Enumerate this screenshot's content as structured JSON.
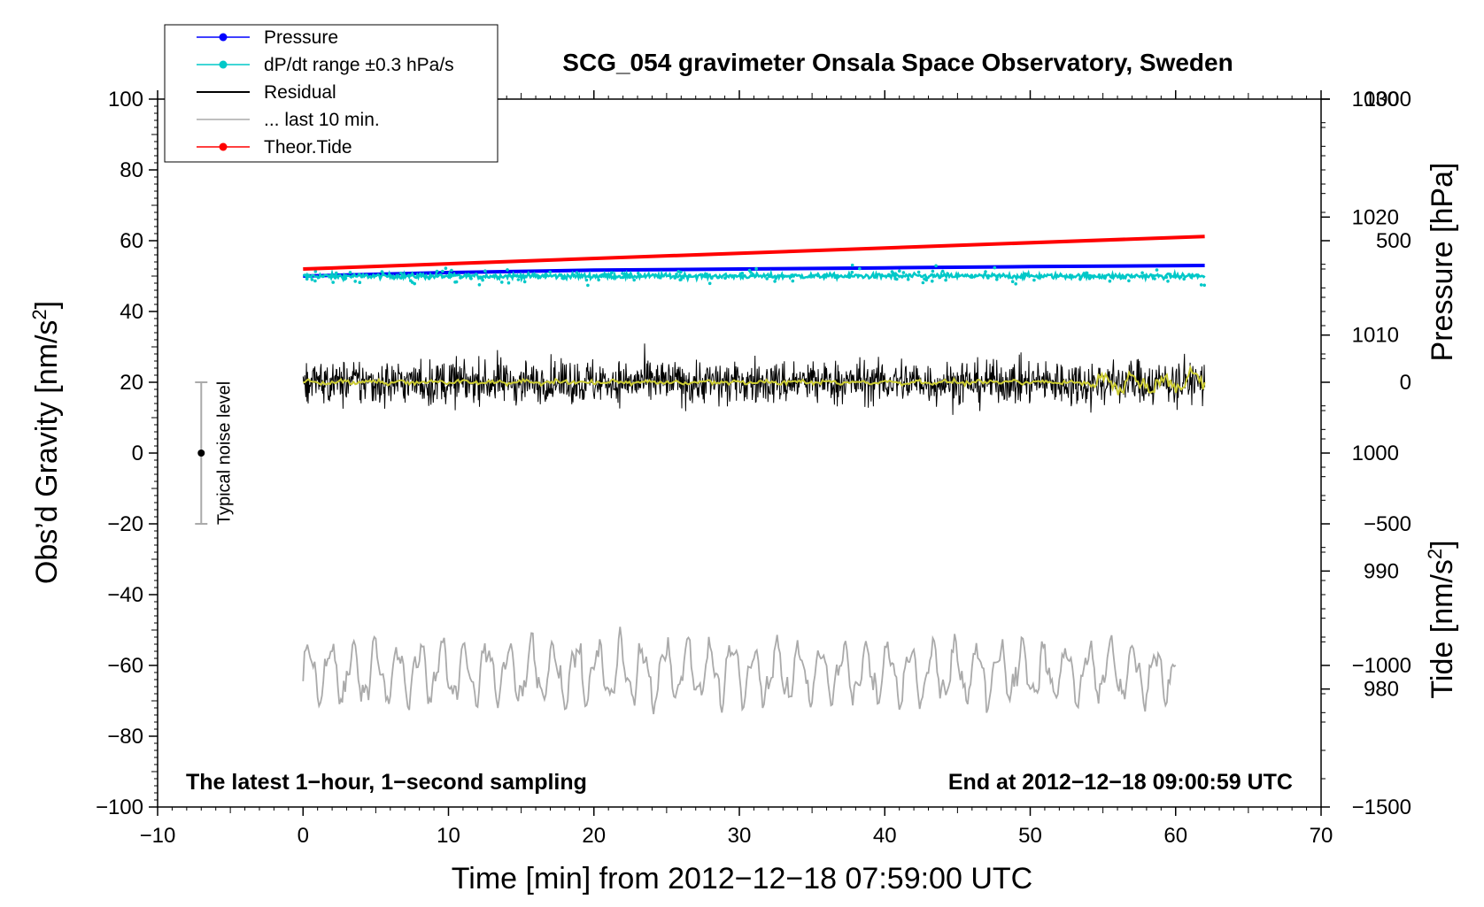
{
  "chart_data": {
    "type": "line",
    "title": "SCG_054 gravimeter Onsala Space Observatory, Sweden",
    "xlabel": "Time [min] from 2012−12−18 07:59:00 UTC",
    "ylabel_left_main": "Obs’d Gravity [nm/s",
    "ylabel_left_sup": "2",
    "ylabel_left_close": "]",
    "ylabel_right_pressure": "Pressure [hPa]",
    "ylabel_right_tide_main": "Tide [nm/s",
    "ylabel_right_tide_sup": "2",
    "ylabel_right_tide_close": "]",
    "xlim": [
      -10,
      70
    ],
    "ylim_left": [
      -100,
      100
    ],
    "ylim_pressure": [
      970,
      1030
    ],
    "ylim_tide": [
      -1500,
      1000
    ],
    "x_ticks": [
      -10,
      0,
      10,
      20,
      30,
      40,
      50,
      60,
      70
    ],
    "x_tick_labels": [
      "−10",
      "0",
      "10",
      "20",
      "30",
      "40",
      "50",
      "60",
      "70"
    ],
    "y_left_ticks": [
      100,
      80,
      60,
      40,
      20,
      0,
      -20,
      -40,
      -60,
      -80,
      -100
    ],
    "y_left_tick_labels": [
      "100",
      "80",
      "60",
      "40",
      "20",
      "0",
      "−20",
      "−40",
      "−60",
      "−80",
      "−100"
    ],
    "y_pressure_ticks": [
      1030,
      1020,
      1010,
      1000,
      990,
      980
    ],
    "y_pressure_tick_labels": [
      "1030",
      "1020",
      "1010",
      "1000",
      "990",
      "980"
    ],
    "y_tide_ticks": [
      1000,
      500,
      0,
      -500,
      -1000,
      -1500
    ],
    "y_tide_tick_labels": [
      "1000",
      "500",
      "0",
      "−500",
      "−1000",
      "−1500"
    ],
    "legend": {
      "position": "top-left",
      "entries": [
        {
          "label": "Pressure",
          "color": "#0000ff",
          "marker": true
        },
        {
          "label": "dP/dt range ±0.3 hPa/s",
          "color": "#00c8c8",
          "marker": true
        },
        {
          "label": "Residual",
          "color": "#000000",
          "marker": false
        },
        {
          "label": "... last 10 min.",
          "color": "#aaaaaa",
          "marker": false
        },
        {
          "label": "Theor.Tide",
          "color": "#ff0000",
          "marker": true
        }
      ]
    },
    "series": [
      {
        "name": "Pressure",
        "axis": "pressure",
        "color": "#0000ff",
        "x": [
          0,
          10,
          20,
          30,
          40,
          50,
          62
        ],
        "y": [
          1015.0,
          1015.3,
          1015.5,
          1015.6,
          1015.7,
          1015.8,
          1015.9
        ]
      },
      {
        "name": "dP/dt range ±0.3 hPa/s",
        "axis": "left",
        "color": "#00c8c8",
        "x_start": 0,
        "x_end": 62,
        "center": 50,
        "spread": 1.2
      },
      {
        "name": "Residual",
        "axis": "left",
        "color": "#000000",
        "x_start": 0,
        "x_end": 62,
        "center": 20,
        "spread": 14
      },
      {
        "name": "Residual smoothed",
        "axis": "left",
        "color": "#cccc33",
        "x_start": 0,
        "x_end": 62,
        "center": 20,
        "spread": 1
      },
      {
        "name": "... last 10 min.",
        "axis": "left",
        "color": "#aaaaaa",
        "x_start": 0,
        "x_end": 60,
        "center": -62,
        "spread": 15
      },
      {
        "name": "Theor.Tide",
        "axis": "tide",
        "color": "#ff0000",
        "x": [
          0,
          62
        ],
        "y": [
          400,
          515
        ]
      }
    ],
    "annotations": {
      "bottom_left": "The latest 1−hour, 1−second sampling",
      "bottom_right": "End at 2012−12−18 09:00:59 UTC",
      "noise_label": "Typical noise level",
      "noise_bar": {
        "x": -7,
        "center": 0,
        "low": -20,
        "high": 20
      }
    }
  }
}
